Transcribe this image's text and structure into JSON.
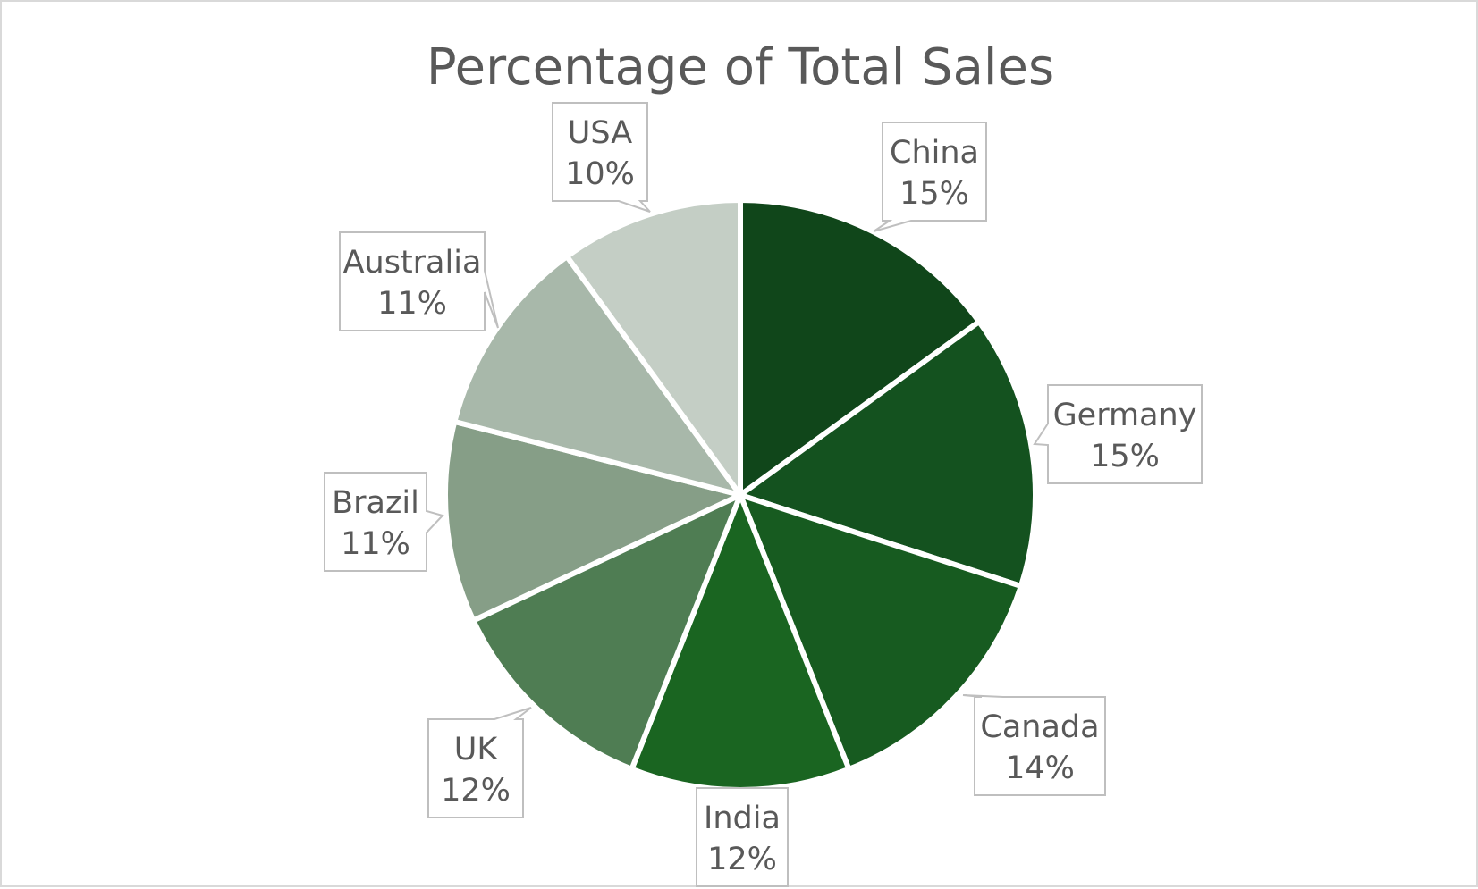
{
  "chart_data": {
    "type": "pie",
    "title": "Percentage of Total Sales",
    "slices": [
      {
        "label": "China",
        "value": 15,
        "value_label": "15%",
        "color": "#10461a"
      },
      {
        "label": "Germany",
        "value": 15,
        "value_label": "15%",
        "color": "#14521f"
      },
      {
        "label": "Canada",
        "value": 14,
        "value_label": "14%",
        "color": "#175b20"
      },
      {
        "label": "India",
        "value": 12,
        "value_label": "12%",
        "color": "#1a6521"
      },
      {
        "label": "UK",
        "value": 12,
        "value_label": "12%",
        "color": "#4f7d53"
      },
      {
        "label": "Brazil",
        "value": 11,
        "value_label": "11%",
        "color": "#869e87"
      },
      {
        "label": "Australia",
        "value": 11,
        "value_label": "11%",
        "color": "#a8b8aa"
      },
      {
        "label": "USA",
        "value": 10,
        "value_label": "10%",
        "color": "#c4cec5"
      }
    ],
    "start_angle_deg": 0,
    "direction": "clockwise",
    "legend": "none",
    "data_labels": "callouts"
  }
}
